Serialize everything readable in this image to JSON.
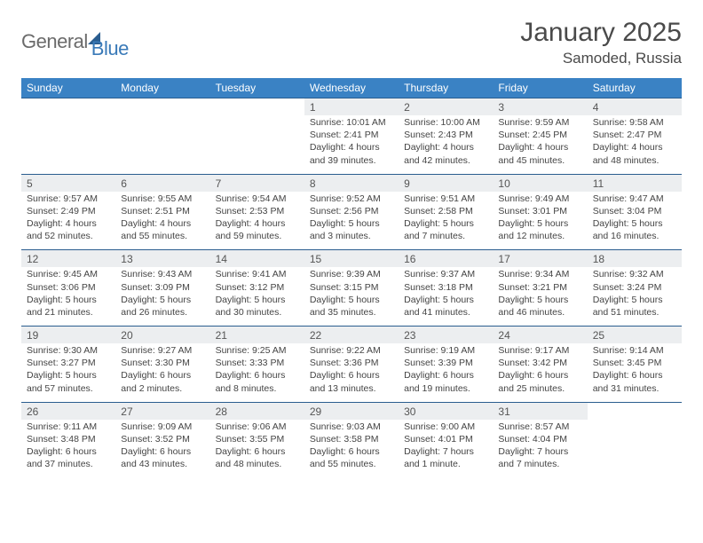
{
  "logo": {
    "word1": "General",
    "word2": "Blue"
  },
  "title": "January 2025",
  "location": "Samoded, Russia",
  "colors": {
    "header_bg": "#3a82c4",
    "header_text": "#ffffff",
    "numrow_bg": "#eceef0",
    "divider": "#2a5d8f",
    "body_text": "#444444",
    "title_text": "#4a4a4a",
    "logo_gray": "#6b6b6b",
    "logo_blue": "#3a7ab8"
  },
  "dayNames": [
    "Sunday",
    "Monday",
    "Tuesday",
    "Wednesday",
    "Thursday",
    "Friday",
    "Saturday"
  ],
  "weeks": [
    [
      null,
      null,
      null,
      {
        "n": "1",
        "sr": "10:01 AM",
        "ss": "2:41 PM",
        "dl": "4 hours and 39 minutes."
      },
      {
        "n": "2",
        "sr": "10:00 AM",
        "ss": "2:43 PM",
        "dl": "4 hours and 42 minutes."
      },
      {
        "n": "3",
        "sr": "9:59 AM",
        "ss": "2:45 PM",
        "dl": "4 hours and 45 minutes."
      },
      {
        "n": "4",
        "sr": "9:58 AM",
        "ss": "2:47 PM",
        "dl": "4 hours and 48 minutes."
      }
    ],
    [
      {
        "n": "5",
        "sr": "9:57 AM",
        "ss": "2:49 PM",
        "dl": "4 hours and 52 minutes."
      },
      {
        "n": "6",
        "sr": "9:55 AM",
        "ss": "2:51 PM",
        "dl": "4 hours and 55 minutes."
      },
      {
        "n": "7",
        "sr": "9:54 AM",
        "ss": "2:53 PM",
        "dl": "4 hours and 59 minutes."
      },
      {
        "n": "8",
        "sr": "9:52 AM",
        "ss": "2:56 PM",
        "dl": "5 hours and 3 minutes."
      },
      {
        "n": "9",
        "sr": "9:51 AM",
        "ss": "2:58 PM",
        "dl": "5 hours and 7 minutes."
      },
      {
        "n": "10",
        "sr": "9:49 AM",
        "ss": "3:01 PM",
        "dl": "5 hours and 12 minutes."
      },
      {
        "n": "11",
        "sr": "9:47 AM",
        "ss": "3:04 PM",
        "dl": "5 hours and 16 minutes."
      }
    ],
    [
      {
        "n": "12",
        "sr": "9:45 AM",
        "ss": "3:06 PM",
        "dl": "5 hours and 21 minutes."
      },
      {
        "n": "13",
        "sr": "9:43 AM",
        "ss": "3:09 PM",
        "dl": "5 hours and 26 minutes."
      },
      {
        "n": "14",
        "sr": "9:41 AM",
        "ss": "3:12 PM",
        "dl": "5 hours and 30 minutes."
      },
      {
        "n": "15",
        "sr": "9:39 AM",
        "ss": "3:15 PM",
        "dl": "5 hours and 35 minutes."
      },
      {
        "n": "16",
        "sr": "9:37 AM",
        "ss": "3:18 PM",
        "dl": "5 hours and 41 minutes."
      },
      {
        "n": "17",
        "sr": "9:34 AM",
        "ss": "3:21 PM",
        "dl": "5 hours and 46 minutes."
      },
      {
        "n": "18",
        "sr": "9:32 AM",
        "ss": "3:24 PM",
        "dl": "5 hours and 51 minutes."
      }
    ],
    [
      {
        "n": "19",
        "sr": "9:30 AM",
        "ss": "3:27 PM",
        "dl": "5 hours and 57 minutes."
      },
      {
        "n": "20",
        "sr": "9:27 AM",
        "ss": "3:30 PM",
        "dl": "6 hours and 2 minutes."
      },
      {
        "n": "21",
        "sr": "9:25 AM",
        "ss": "3:33 PM",
        "dl": "6 hours and 8 minutes."
      },
      {
        "n": "22",
        "sr": "9:22 AM",
        "ss": "3:36 PM",
        "dl": "6 hours and 13 minutes."
      },
      {
        "n": "23",
        "sr": "9:19 AM",
        "ss": "3:39 PM",
        "dl": "6 hours and 19 minutes."
      },
      {
        "n": "24",
        "sr": "9:17 AM",
        "ss": "3:42 PM",
        "dl": "6 hours and 25 minutes."
      },
      {
        "n": "25",
        "sr": "9:14 AM",
        "ss": "3:45 PM",
        "dl": "6 hours and 31 minutes."
      }
    ],
    [
      {
        "n": "26",
        "sr": "9:11 AM",
        "ss": "3:48 PM",
        "dl": "6 hours and 37 minutes."
      },
      {
        "n": "27",
        "sr": "9:09 AM",
        "ss": "3:52 PM",
        "dl": "6 hours and 43 minutes."
      },
      {
        "n": "28",
        "sr": "9:06 AM",
        "ss": "3:55 PM",
        "dl": "6 hours and 48 minutes."
      },
      {
        "n": "29",
        "sr": "9:03 AM",
        "ss": "3:58 PM",
        "dl": "6 hours and 55 minutes."
      },
      {
        "n": "30",
        "sr": "9:00 AM",
        "ss": "4:01 PM",
        "dl": "7 hours and 1 minute."
      },
      {
        "n": "31",
        "sr": "8:57 AM",
        "ss": "4:04 PM",
        "dl": "7 hours and 7 minutes."
      },
      null
    ]
  ],
  "labels": {
    "sunrise": "Sunrise: ",
    "sunset": "Sunset: ",
    "daylight": "Daylight: "
  }
}
